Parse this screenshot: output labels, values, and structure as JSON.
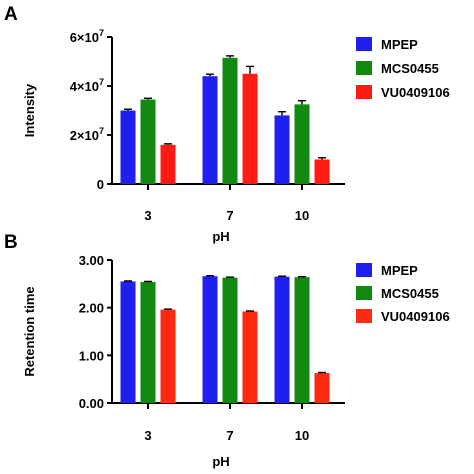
{
  "chart_data": [
    {
      "panel_letter": "A",
      "type": "bar",
      "xlabel": "pH",
      "ylabel": "Intensity",
      "categories": [
        "3",
        "7",
        "10"
      ],
      "ylim": [
        0,
        60000000
      ],
      "yticks": [
        0,
        20000000,
        40000000,
        60000000
      ],
      "ytick_labels": [
        "0",
        "2×10",
        "4×10",
        "6×10"
      ],
      "ytick_exponent": "7",
      "grid": false,
      "legend_position": "right",
      "series": [
        {
          "name": "MPEP",
          "color": "#1f1ff0",
          "values": [
            30000000,
            44000000,
            28000000
          ],
          "errors": [
            500000,
            800000,
            1500000
          ]
        },
        {
          "name": "MCS0455",
          "color": "#128a12",
          "values": [
            34500000,
            51500000,
            32500000
          ],
          "errors": [
            500000,
            800000,
            1500000
          ]
        },
        {
          "name": "VU0409106",
          "color": "#ff1a12",
          "values": [
            16000000,
            45000000,
            10000000
          ],
          "errors": [
            400000,
            3000000,
            700000
          ]
        }
      ]
    },
    {
      "panel_letter": "B",
      "type": "bar",
      "xlabel": "pH",
      "ylabel": "Retention time",
      "categories": [
        "3",
        "7",
        "10"
      ],
      "ylim": [
        0,
        3
      ],
      "yticks": [
        0,
        1,
        2,
        3
      ],
      "ytick_labels": [
        "0.00",
        "1.00",
        "2.00",
        "3.00"
      ],
      "grid": false,
      "legend_position": "right",
      "series": [
        {
          "name": "MPEP",
          "color": "#1f1ff0",
          "values": [
            2.55,
            2.66,
            2.65
          ],
          "errors": [
            0.01,
            0.01,
            0.01
          ]
        },
        {
          "name": "MCS0455",
          "color": "#128a12",
          "values": [
            2.54,
            2.63,
            2.64
          ],
          "errors": [
            0.01,
            0.01,
            0.01
          ]
        },
        {
          "name": "VU0409106",
          "color": "#ff2a12",
          "values": [
            1.96,
            1.92,
            0.63
          ],
          "errors": [
            0.01,
            0.01,
            0.01
          ]
        }
      ]
    }
  ]
}
